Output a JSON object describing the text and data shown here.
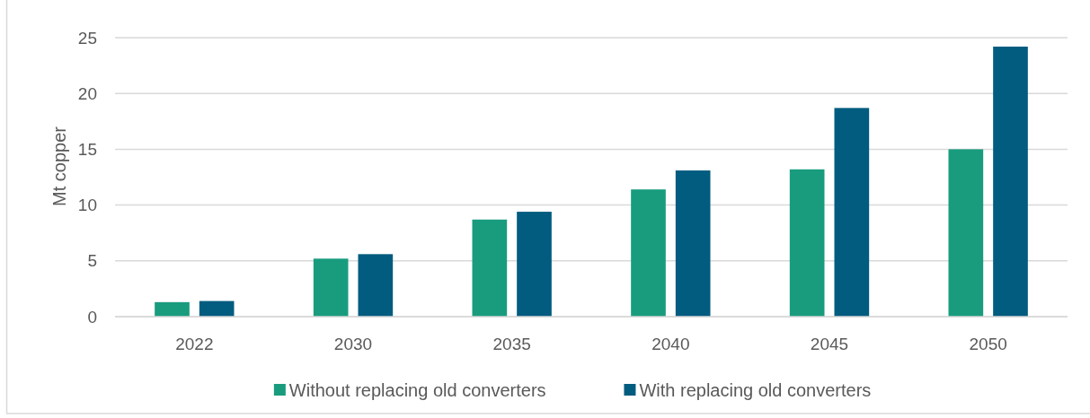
{
  "chart_data": {
    "type": "bar",
    "ylabel": "Mt copper",
    "categories": [
      "2022",
      "2030",
      "2035",
      "2040",
      "2045",
      "2050"
    ],
    "series": [
      {
        "name": "Without replacing old converters",
        "color": "#199c7e",
        "values": [
          1.3,
          5.2,
          8.7,
          11.4,
          13.2,
          15.0
        ]
      },
      {
        "name": "With replacing old converters",
        "color": "#015c7f",
        "values": [
          1.4,
          5.6,
          9.4,
          13.1,
          18.7,
          24.2
        ]
      }
    ],
    "ylim": [
      0,
      25
    ],
    "yticks": [
      0,
      5,
      10,
      15,
      20,
      25
    ],
    "grid": "y",
    "legend": "bottom"
  }
}
